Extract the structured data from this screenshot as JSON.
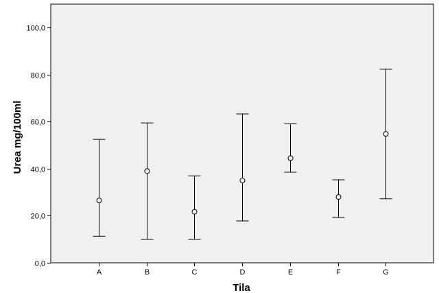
{
  "chart_data": {
    "type": "errorbar",
    "title": "",
    "xlabel": "Tila",
    "ylabel": "Urea mg/100ml",
    "ylim": [
      0,
      110
    ],
    "y_ticks": [
      0,
      20,
      40,
      60,
      80,
      100
    ],
    "y_tick_labels": [
      "0,0",
      "20,0",
      "40,0",
      "60,0",
      "80,0",
      "100,0"
    ],
    "categories": [
      "A",
      "B",
      "C",
      "D",
      "E",
      "F",
      "G"
    ],
    "series": [
      {
        "mean": [
          26.5,
          39.0,
          21.7,
          35.0,
          44.5,
          28.0,
          54.8
        ],
        "lower": [
          11.3,
          10.0,
          10.0,
          17.8,
          38.5,
          19.3,
          27.2
        ],
        "upper": [
          52.5,
          59.5,
          37.0,
          63.3,
          59.1,
          35.3,
          82.3
        ]
      }
    ],
    "grid": false,
    "plot_background": "#f0f0f0",
    "marker": "open-circle",
    "line_color": "#000000"
  }
}
